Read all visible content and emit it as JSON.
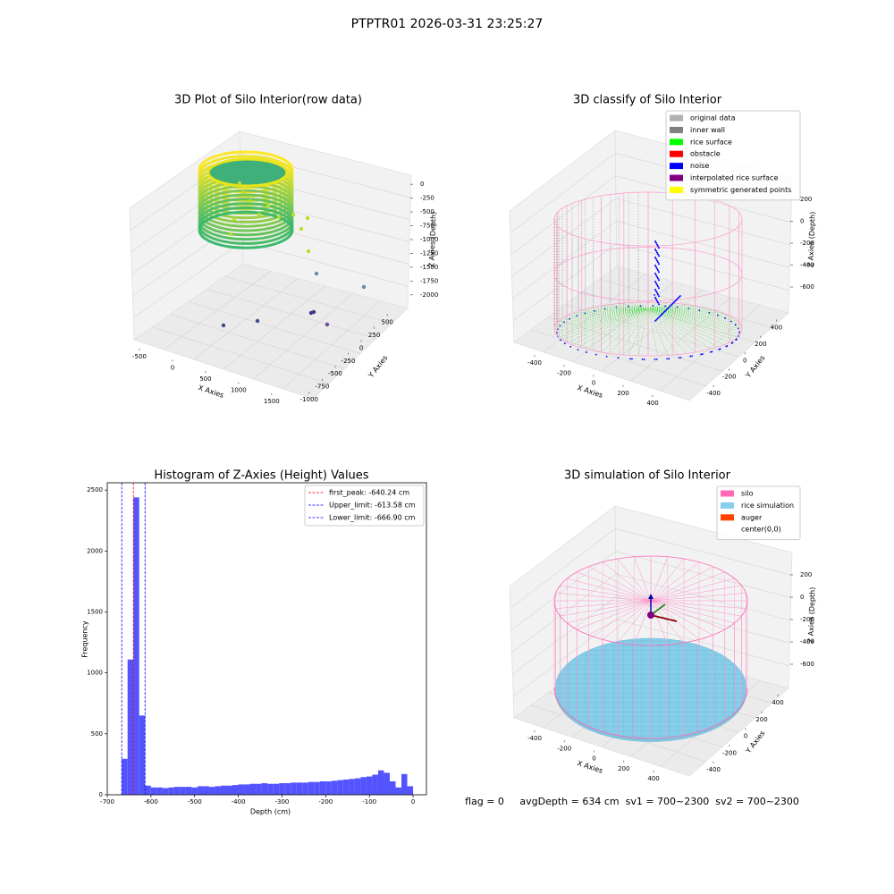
{
  "suptitle": "PTPTR01 2026-03-31 23:25:27",
  "footer": "flag = 0     avgDepth = 634 cm  sv1 = 700~2300  sv2 = 700~2300",
  "chart_data": [
    {
      "type": "scatter3d",
      "title": "3D Plot of Silo Interior(row data)",
      "xlabel": "X Axies",
      "ylabel": "Y Axies",
      "zlabel": "Z Axies (Depth)",
      "xlim": [
        -600,
        1800
      ],
      "xticks": [
        -500,
        0,
        500,
        1000,
        1500
      ],
      "ylim": [
        -1100,
        600
      ],
      "yticks": [
        -1000,
        -750,
        -500,
        -250,
        0,
        250,
        500
      ],
      "zlim": [
        -2100,
        100
      ],
      "zticks": [
        -2000,
        -1750,
        -1500,
        -1250,
        -1000,
        -750,
        -500,
        -250,
        0
      ]
    },
    {
      "type": "scatter3d",
      "title": "3D classify of Silo Interior",
      "xlabel": "X Axies",
      "ylabel": "Y Axies",
      "zlabel": "Z Axies (Depth)",
      "xlim": [
        -520,
        520
      ],
      "xticks": [
        -400,
        -200,
        0,
        200,
        400
      ],
      "ylim": [
        -520,
        520
      ],
      "yticks": [
        -400,
        -200,
        0,
        200,
        400
      ],
      "zlim": [
        -720,
        260
      ],
      "zticks": [
        -600,
        -400,
        -200,
        0,
        200
      ],
      "legend": [
        {
          "name": "original data",
          "color": "#b0b0b0"
        },
        {
          "name": "inner wall",
          "color": "#808080"
        },
        {
          "name": "rice surface",
          "color": "#00ff00"
        },
        {
          "name": "obstacle",
          "color": "#ff0000"
        },
        {
          "name": "noise",
          "color": "#0000ff"
        },
        {
          "name": "interpolated rice surface",
          "color": "#800080"
        },
        {
          "name": "symmetric generated points",
          "color": "#ffff00"
        }
      ]
    },
    {
      "type": "histogram",
      "title": "Histogram of Z-Axies (Height) Values",
      "xlabel": "Depth (cm)",
      "ylabel": "Frequency",
      "color": "#4b4bff",
      "bins": [
        -666.9,
        -653.56,
        -640.22,
        -626.89,
        -613.55,
        -600.21,
        -586.87,
        -573.53,
        -560.2,
        -546.86,
        -533.52,
        -520.18,
        -506.84,
        -493.51,
        -480.17,
        -466.83,
        -453.49,
        -440.15,
        -426.82,
        -413.48,
        -400.14,
        -386.8,
        -373.46,
        -360.13,
        -346.79,
        -333.45,
        -320.11,
        -306.77,
        -293.44,
        -280.1,
        -266.76,
        -253.42,
        -240.08,
        -226.75,
        -213.41,
        -200.07,
        -186.73,
        -173.39,
        -160.06,
        -146.72,
        -133.38,
        -120.04,
        -106.7,
        -93.37,
        -80.03,
        -66.69,
        -53.35,
        -40.01,
        -26.68,
        -13.34,
        0
      ],
      "values": [
        295,
        1110,
        2440,
        650,
        75,
        60,
        60,
        55,
        60,
        65,
        65,
        65,
        60,
        70,
        70,
        65,
        70,
        75,
        75,
        80,
        85,
        85,
        90,
        90,
        95,
        90,
        90,
        95,
        95,
        100,
        100,
        100,
        105,
        105,
        110,
        110,
        115,
        120,
        125,
        130,
        135,
        145,
        150,
        165,
        200,
        180,
        110,
        60,
        170,
        70
      ],
      "xlim": [
        -700,
        30.6
      ],
      "xticks": [
        -700,
        -600,
        -500,
        -400,
        -300,
        -200,
        -100,
        0
      ],
      "ylim": [
        0,
        2560
      ],
      "yticks": [
        0,
        500,
        1000,
        1500,
        2000,
        2500
      ],
      "vlines": [
        {
          "label": "first_peak: -640.24 cm",
          "value": -640.24,
          "color": "#ff0000"
        },
        {
          "label": "Upper_limit: -613.58 cm",
          "value": -613.58,
          "color": "#0000ff"
        },
        {
          "label": "Lower_limit: -666.90 cm",
          "value": -666.9,
          "color": "#0000ff"
        }
      ]
    },
    {
      "type": "surface3d",
      "title": "3D simulation of Silo Interior",
      "xlabel": "X Axies",
      "ylabel": "Y Axies",
      "zlabel": "Z Axies (Depth)",
      "xlim": [
        -520,
        520
      ],
      "xticks": [
        -400,
        -200,
        0,
        200,
        400
      ],
      "ylim": [
        -520,
        520
      ],
      "yticks": [
        -400,
        -200,
        0,
        200,
        400
      ],
      "zlim": [
        -720,
        330
      ],
      "zticks": [
        -600,
        -400,
        -200,
        0,
        200
      ],
      "legend": [
        {
          "name": "silo",
          "color": "#ff69b4"
        },
        {
          "name": "rice simulation",
          "color": "#87ceeb"
        },
        {
          "name": "auger",
          "color": "#ff4500"
        },
        {
          "name": "center(0,0)",
          "color": "#ffffff"
        }
      ]
    }
  ]
}
